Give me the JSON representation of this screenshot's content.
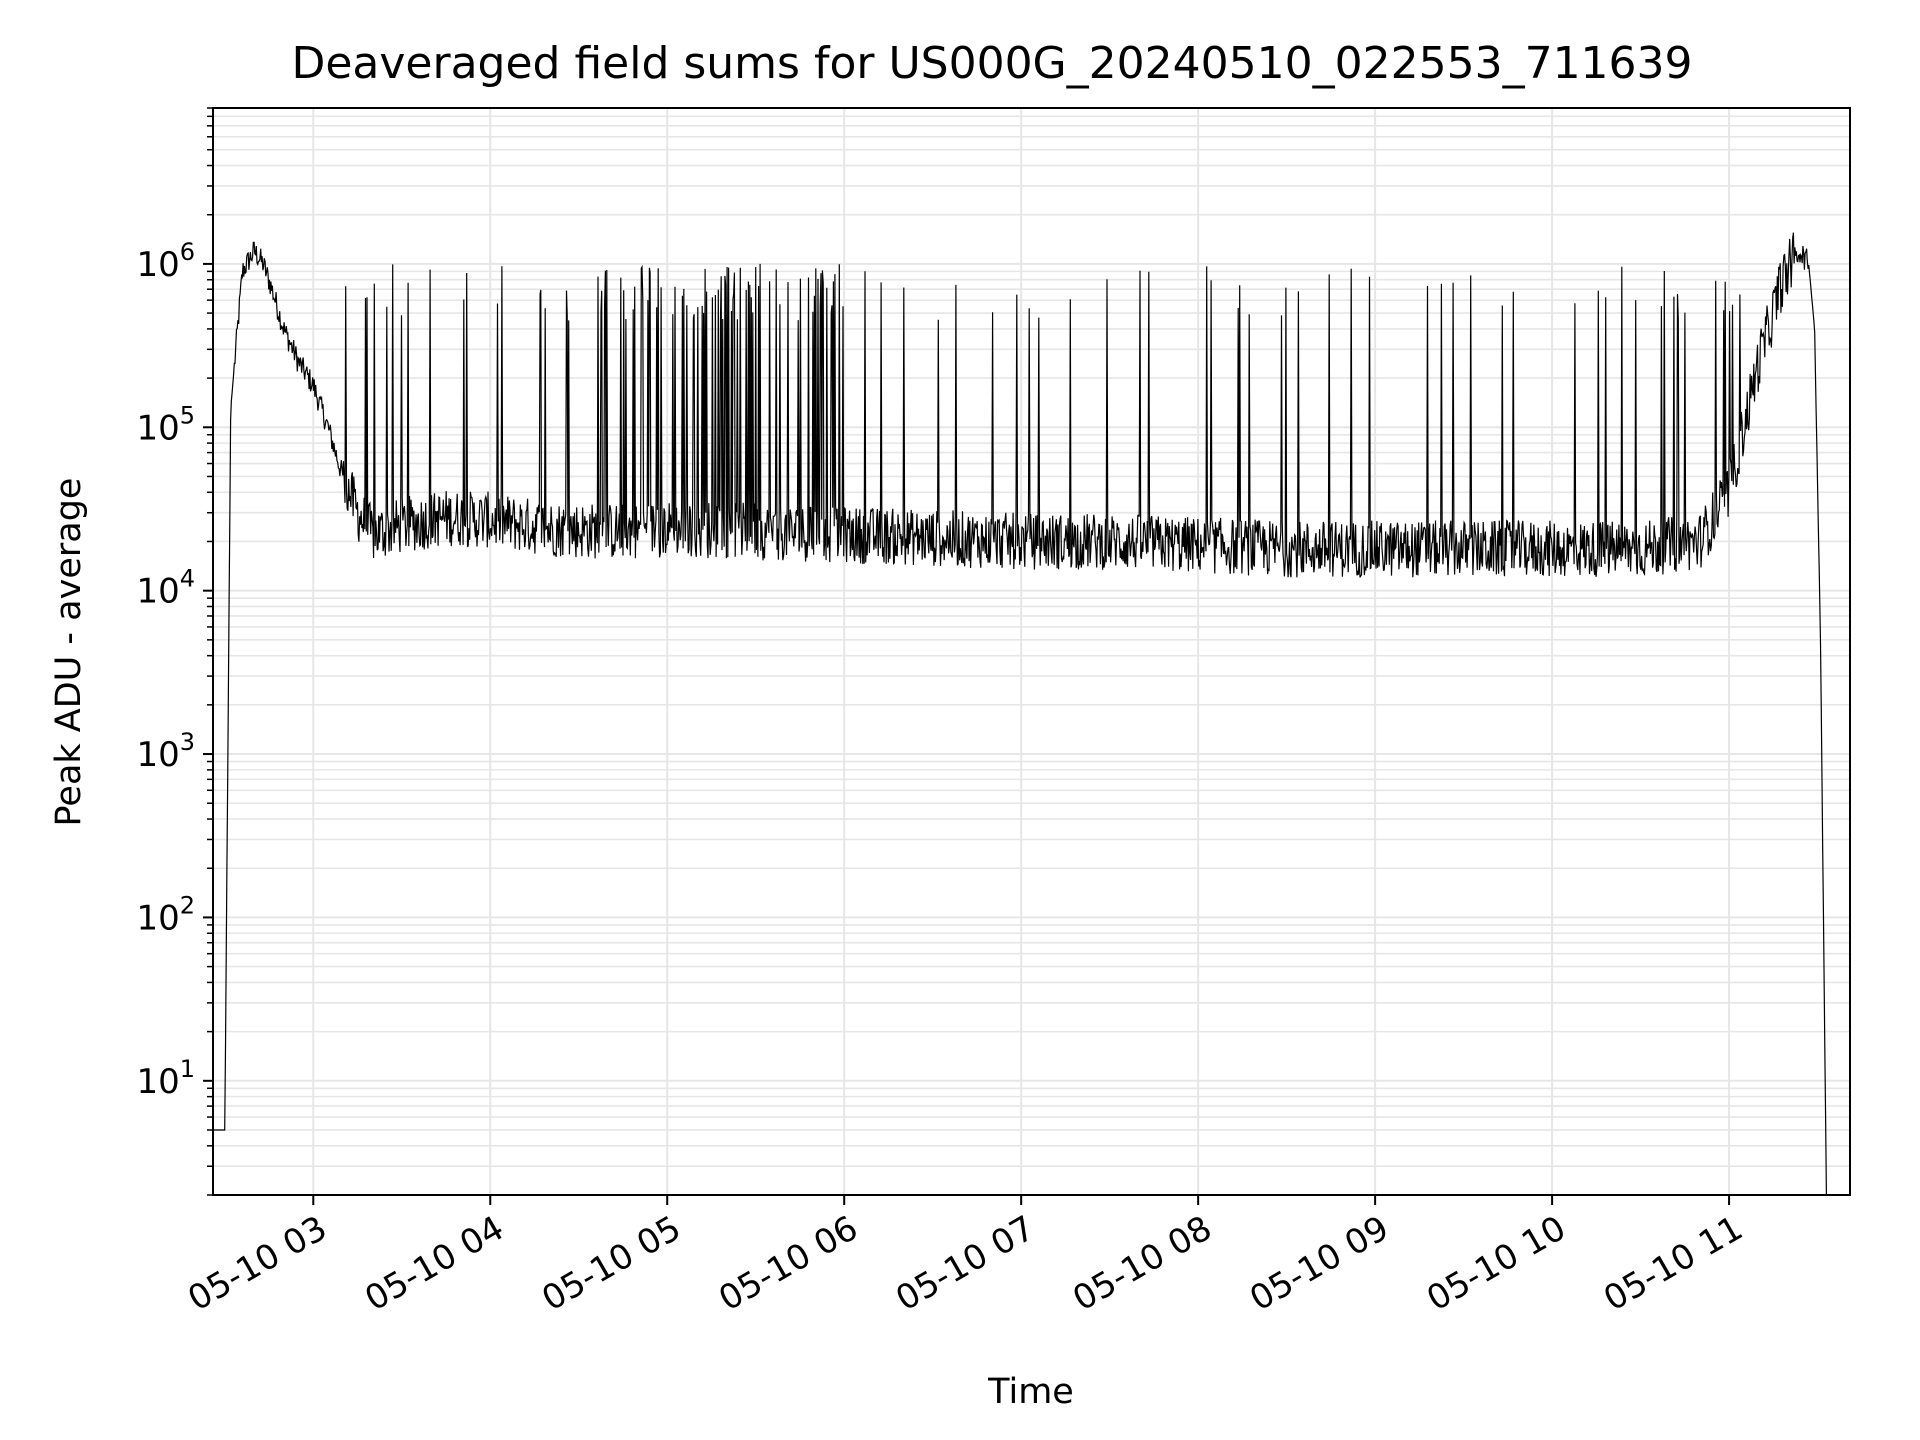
{
  "chart_data": {
    "type": "line",
    "title": "Deaveraged field sums for US000G_20240510_022553_711639",
    "xlabel": "Time",
    "ylabel": "Peak ADU - average",
    "y_scale": "log",
    "grid": true,
    "xlim": [
      "05-10 02:26",
      "05-10 11:41"
    ],
    "ylim": [
      2,
      9000000
    ],
    "x_ticks": [
      "05-10 03",
      "05-10 04",
      "05-10 05",
      "05-10 06",
      "05-10 07",
      "05-10 08",
      "05-10 09",
      "05-10 10",
      "05-10 11"
    ],
    "y_ticks": [
      {
        "base": "10",
        "exp": "1"
      },
      {
        "base": "10",
        "exp": "2"
      },
      {
        "base": "10",
        "exp": "3"
      },
      {
        "base": "10",
        "exp": "4"
      },
      {
        "base": "10",
        "exp": "5"
      },
      {
        "base": "10",
        "exp": "6"
      }
    ],
    "line_color": "#000000",
    "series": [
      {
        "x": [
          "05-10 02:26",
          "05-10 02:30",
          "05-10 02:32",
          "05-10 02:36",
          "05-10 02:40",
          "05-10 02:43",
          "05-10 02:46",
          "05-10 02:50",
          "05-10 02:55",
          "05-10 03:00",
          "05-10 03:05",
          "05-10 03:10",
          "05-10 03:15",
          "05-10 03:20",
          "05-10 03:30",
          "05-10 03:45",
          "05-10 04:00",
          "05-10 04:20",
          "05-10 04:40",
          "05-10 05:00",
          "05-10 05:30",
          "05-10 06:00",
          "05-10 06:30",
          "05-10 07:00",
          "05-10 07:30",
          "05-10 08:00",
          "05-10 08:30",
          "05-10 09:00",
          "05-10 09:30",
          "05-10 10:00",
          "05-10 10:30",
          "05-10 10:50",
          "05-10 11:00",
          "05-10 11:05",
          "05-10 11:10",
          "05-10 11:15",
          "05-10 11:18",
          "05-10 11:21",
          "05-10 11:24",
          "05-10 11:27",
          "05-10 11:29",
          "05-10 11:31",
          "05-10 11:33"
        ],
        "values": [
          5,
          5,
          130000,
          900000,
          1200000,
          1000000,
          700000,
          400000,
          250000,
          180000,
          100000,
          50000,
          30000,
          22000,
          25000,
          28000,
          27000,
          24000,
          23000,
          24000,
          23000,
          22000,
          21000,
          20000,
          20000,
          19000,
          18000,
          18000,
          18000,
          18000,
          18000,
          20000,
          40000,
          100000,
          250000,
          500000,
          800000,
          1000000,
          1200000,
          1000000,
          400000,
          5000,
          2
        ]
      }
    ],
    "annotations": []
  }
}
